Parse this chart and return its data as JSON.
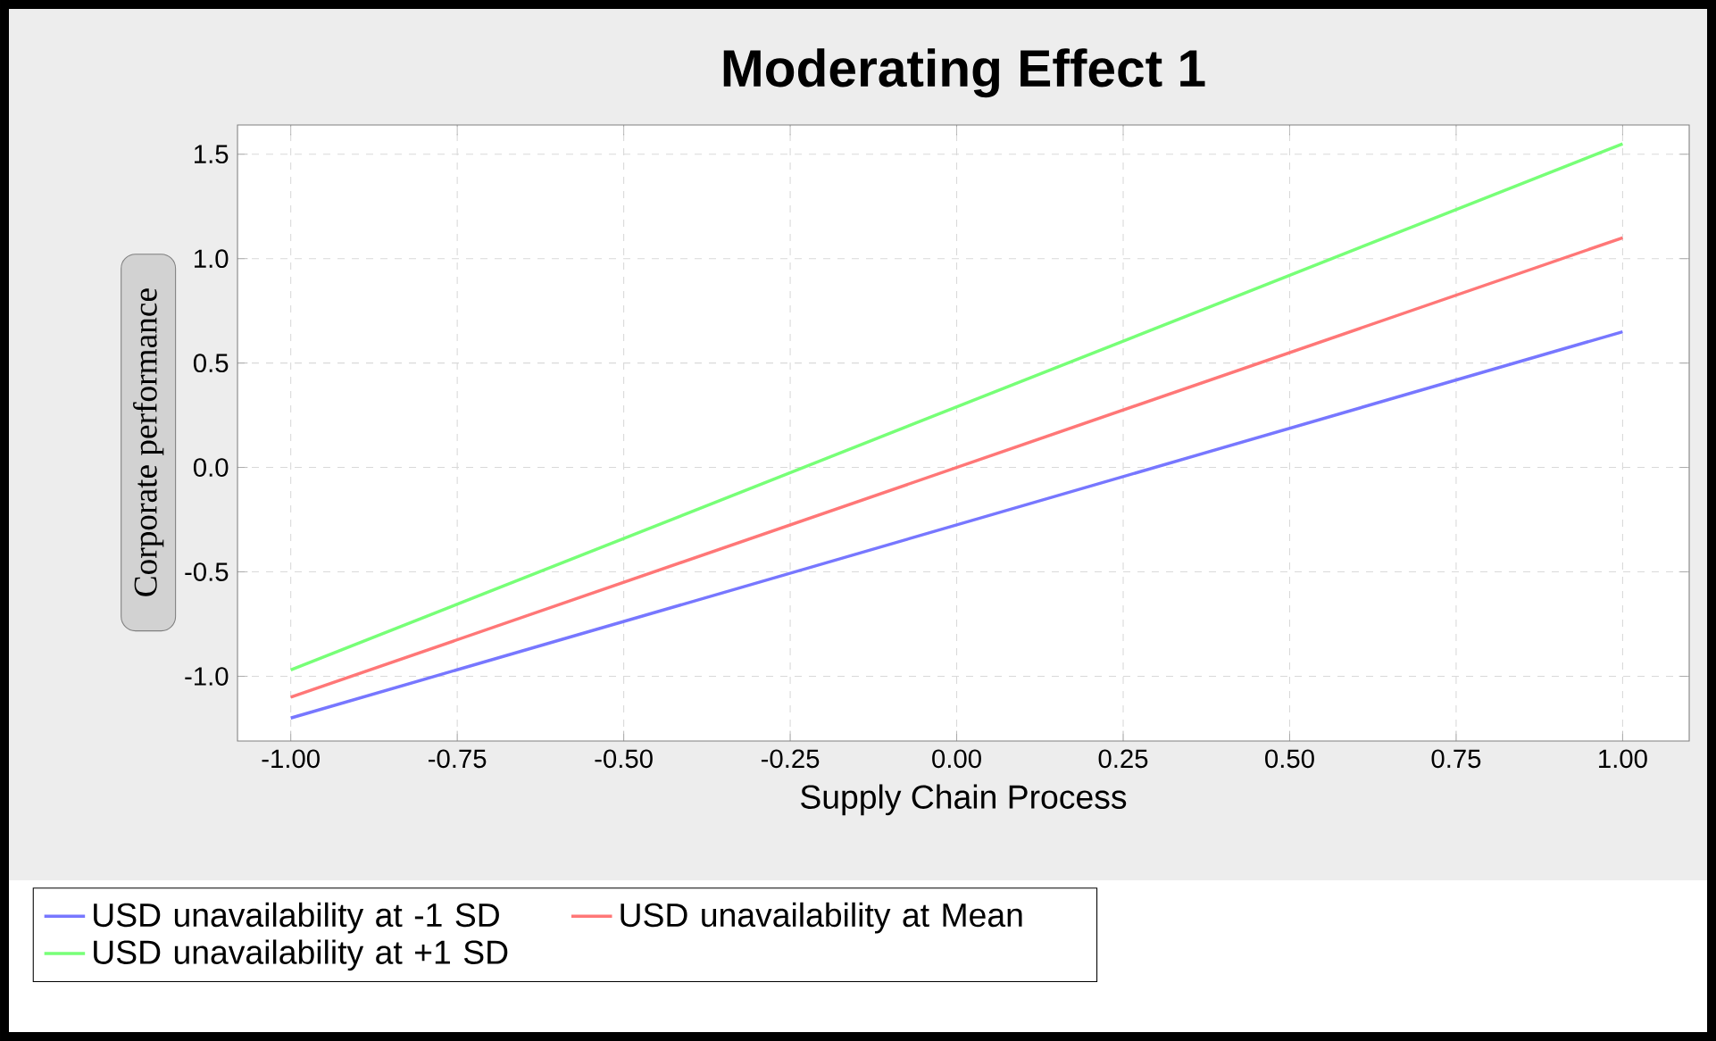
{
  "chart_data": {
    "type": "line",
    "title": "Moderating Effect 1",
    "xlabel": "Supply Chain Process",
    "ylabel": "Corporate performance",
    "xlim": [
      -1.08,
      1.1
    ],
    "ylim": [
      -1.31,
      1.64
    ],
    "xticks": [
      {
        "value": -1,
        "label": "-1.00"
      },
      {
        "value": -0.75,
        "label": "-0.75"
      },
      {
        "value": -0.5,
        "label": "-0.50"
      },
      {
        "value": -0.25,
        "label": "-0.25"
      },
      {
        "value": 0,
        "label": "0.00"
      },
      {
        "value": 0.25,
        "label": "0.25"
      },
      {
        "value": 0.5,
        "label": "0.50"
      },
      {
        "value": 0.75,
        "label": "0.75"
      },
      {
        "value": 1,
        "label": "1.00"
      }
    ],
    "yticks": [
      {
        "value": -1,
        "label": "-1.0"
      },
      {
        "value": -0.5,
        "label": "-0.5"
      },
      {
        "value": 0,
        "label": "0.0"
      },
      {
        "value": 0.5,
        "label": "0.5"
      },
      {
        "value": 1,
        "label": "1.0"
      },
      {
        "value": 1.5,
        "label": "1.5"
      }
    ],
    "grid": true,
    "legend": "bottom",
    "marker": "none",
    "line_style": "solid",
    "x": [
      -1,
      1
    ],
    "series": [
      {
        "name": "USD unavailability at -1 SD",
        "color": "#7777ff",
        "values": [
          -1.2,
          0.65
        ]
      },
      {
        "name": "USD unavailability at Mean",
        "color": "#ff7777",
        "values": [
          -1.1,
          1.1
        ]
      },
      {
        "name": "USD unavailability at +1 SD",
        "color": "#77ff77",
        "values": [
          -0.97,
          1.55
        ]
      }
    ]
  }
}
